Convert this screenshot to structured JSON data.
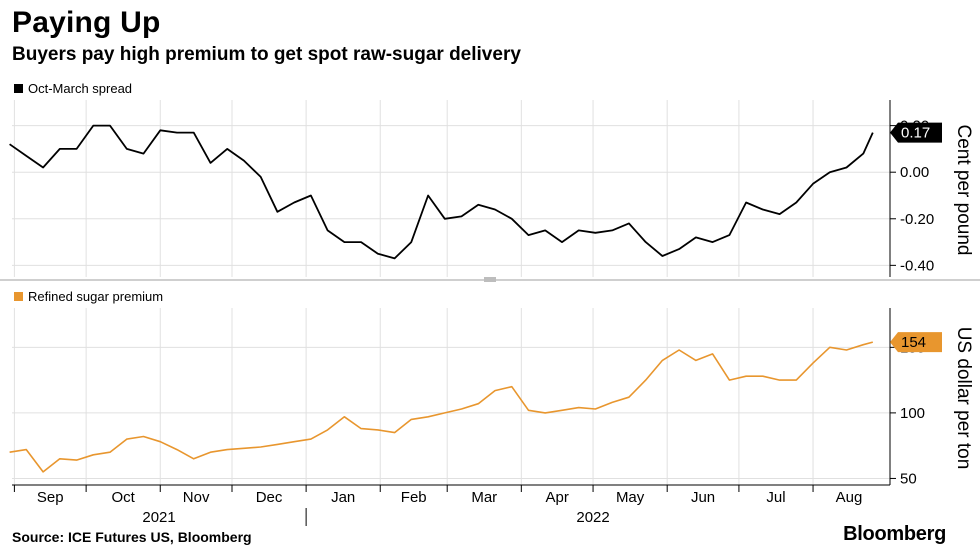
{
  "header": {
    "title": "Paying Up",
    "subtitle": "Buyers pay high premium to get spot raw-sugar delivery"
  },
  "footer": {
    "source": "Source: ICE Futures US, Bloomberg",
    "brand": "Bloomberg"
  },
  "colors": {
    "spread": "#000000",
    "premium": "#e8962e",
    "grid": "#e0e0e0"
  },
  "x_axis": {
    "months": [
      "Sep",
      "Oct",
      "Nov",
      "Dec",
      "Jan",
      "Feb",
      "Mar",
      "Apr",
      "May",
      "Jun",
      "Jul",
      "Aug"
    ],
    "years": [
      "2021",
      "2022"
    ]
  },
  "chart_data": [
    {
      "type": "line",
      "legend": "Oct-March spread",
      "legend_placement": "top-left",
      "ylabel": "Cent per pound",
      "ylim": [
        -0.45,
        0.31
      ],
      "yticks": [
        -0.4,
        -0.2,
        0.0,
        0.2
      ],
      "ytick_labels": [
        "-0.40",
        "-0.20",
        "0.00",
        "0.20"
      ],
      "last_value_label": "0.17",
      "grid": true,
      "x_start": "2021-08-30",
      "series": [
        {
          "name": "Oct-March spread",
          "x": [
            "2021-08-30",
            "2021-09-06",
            "2021-09-13",
            "2021-09-20",
            "2021-09-27",
            "2021-10-04",
            "2021-10-11",
            "2021-10-18",
            "2021-10-25",
            "2021-11-01",
            "2021-11-08",
            "2021-11-15",
            "2021-11-22",
            "2021-11-29",
            "2021-12-06",
            "2021-12-13",
            "2021-12-20",
            "2021-12-27",
            "2022-01-03",
            "2022-01-10",
            "2022-01-17",
            "2022-01-24",
            "2022-01-31",
            "2022-02-07",
            "2022-02-14",
            "2022-02-21",
            "2022-02-28",
            "2022-03-07",
            "2022-03-14",
            "2022-03-21",
            "2022-03-28",
            "2022-04-04",
            "2022-04-11",
            "2022-04-18",
            "2022-04-25",
            "2022-05-02",
            "2022-05-09",
            "2022-05-16",
            "2022-05-23",
            "2022-05-30",
            "2022-06-06",
            "2022-06-13",
            "2022-06-20",
            "2022-06-27",
            "2022-07-04",
            "2022-07-11",
            "2022-07-18",
            "2022-07-25",
            "2022-08-01",
            "2022-08-08",
            "2022-08-15",
            "2022-08-22",
            "2022-08-26"
          ],
          "values": [
            0.12,
            0.07,
            0.02,
            0.1,
            0.1,
            0.2,
            0.2,
            0.1,
            0.08,
            0.18,
            0.17,
            0.17,
            0.04,
            0.1,
            0.05,
            -0.02,
            -0.17,
            -0.13,
            -0.1,
            -0.25,
            -0.3,
            -0.3,
            -0.35,
            -0.37,
            -0.3,
            -0.1,
            -0.2,
            -0.19,
            -0.14,
            -0.16,
            -0.2,
            -0.27,
            -0.25,
            -0.3,
            -0.25,
            -0.26,
            -0.25,
            -0.22,
            -0.3,
            -0.36,
            -0.33,
            -0.28,
            -0.3,
            -0.27,
            -0.13,
            -0.16,
            -0.18,
            -0.13,
            -0.05,
            0.0,
            0.02,
            0.08,
            0.17
          ]
        }
      ]
    },
    {
      "type": "line",
      "legend": "Refined sugar premium",
      "legend_placement": "top-left",
      "ylabel": "US dollar per ton",
      "ylim": [
        45,
        180
      ],
      "yticks": [
        50,
        100,
        150
      ],
      "ytick_labels": [
        "50",
        "100",
        "150"
      ],
      "last_value_label": "154",
      "grid": true,
      "x_start": "2021-08-30",
      "series": [
        {
          "name": "Refined sugar premium",
          "x": [
            "2021-08-30",
            "2021-09-06",
            "2021-09-13",
            "2021-09-20",
            "2021-09-27",
            "2021-10-04",
            "2021-10-11",
            "2021-10-18",
            "2021-10-25",
            "2021-11-01",
            "2021-11-08",
            "2021-11-15",
            "2021-11-22",
            "2021-11-29",
            "2021-12-06",
            "2021-12-13",
            "2021-12-20",
            "2021-12-27",
            "2022-01-03",
            "2022-01-10",
            "2022-01-17",
            "2022-01-24",
            "2022-01-31",
            "2022-02-07",
            "2022-02-14",
            "2022-02-21",
            "2022-02-28",
            "2022-03-07",
            "2022-03-14",
            "2022-03-21",
            "2022-03-28",
            "2022-04-04",
            "2022-04-11",
            "2022-04-18",
            "2022-04-25",
            "2022-05-02",
            "2022-05-09",
            "2022-05-16",
            "2022-05-23",
            "2022-05-30",
            "2022-06-06",
            "2022-06-13",
            "2022-06-20",
            "2022-06-27",
            "2022-07-04",
            "2022-07-11",
            "2022-07-18",
            "2022-07-25",
            "2022-08-01",
            "2022-08-08",
            "2022-08-15",
            "2022-08-22",
            "2022-08-26"
          ],
          "values": [
            70,
            72,
            55,
            65,
            64,
            68,
            70,
            80,
            82,
            78,
            72,
            65,
            70,
            72,
            73,
            74,
            76,
            78,
            80,
            87,
            97,
            88,
            87,
            85,
            95,
            97,
            100,
            103,
            107,
            117,
            120,
            102,
            100,
            102,
            104,
            103,
            108,
            112,
            125,
            140,
            148,
            140,
            145,
            125,
            128,
            128,
            125,
            125,
            138,
            150,
            148,
            152,
            154
          ]
        }
      ]
    }
  ]
}
